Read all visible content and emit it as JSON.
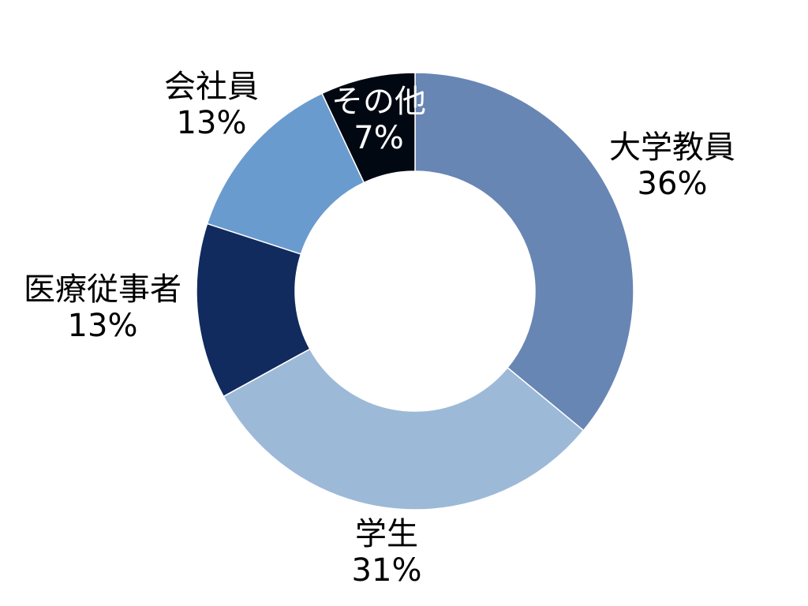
{
  "chart_data": {
    "type": "pie",
    "donut": true,
    "title": "",
    "legend": "none",
    "slices": [
      {
        "label": "大学教員",
        "value": 36,
        "value_label": "36%",
        "color": "#6886b4"
      },
      {
        "label": "学生",
        "value": 31,
        "value_label": "31%",
        "color": "#9db9d8"
      },
      {
        "label": "医療従事者",
        "value": 13,
        "value_label": "13%",
        "color": "#112b5f"
      },
      {
        "label": "会社員",
        "value": 13,
        "value_label": "13%",
        "color": "#6a9bce"
      },
      {
        "label": "その他",
        "value": 7,
        "value_label": "7%",
        "color": "#020812"
      }
    ]
  }
}
